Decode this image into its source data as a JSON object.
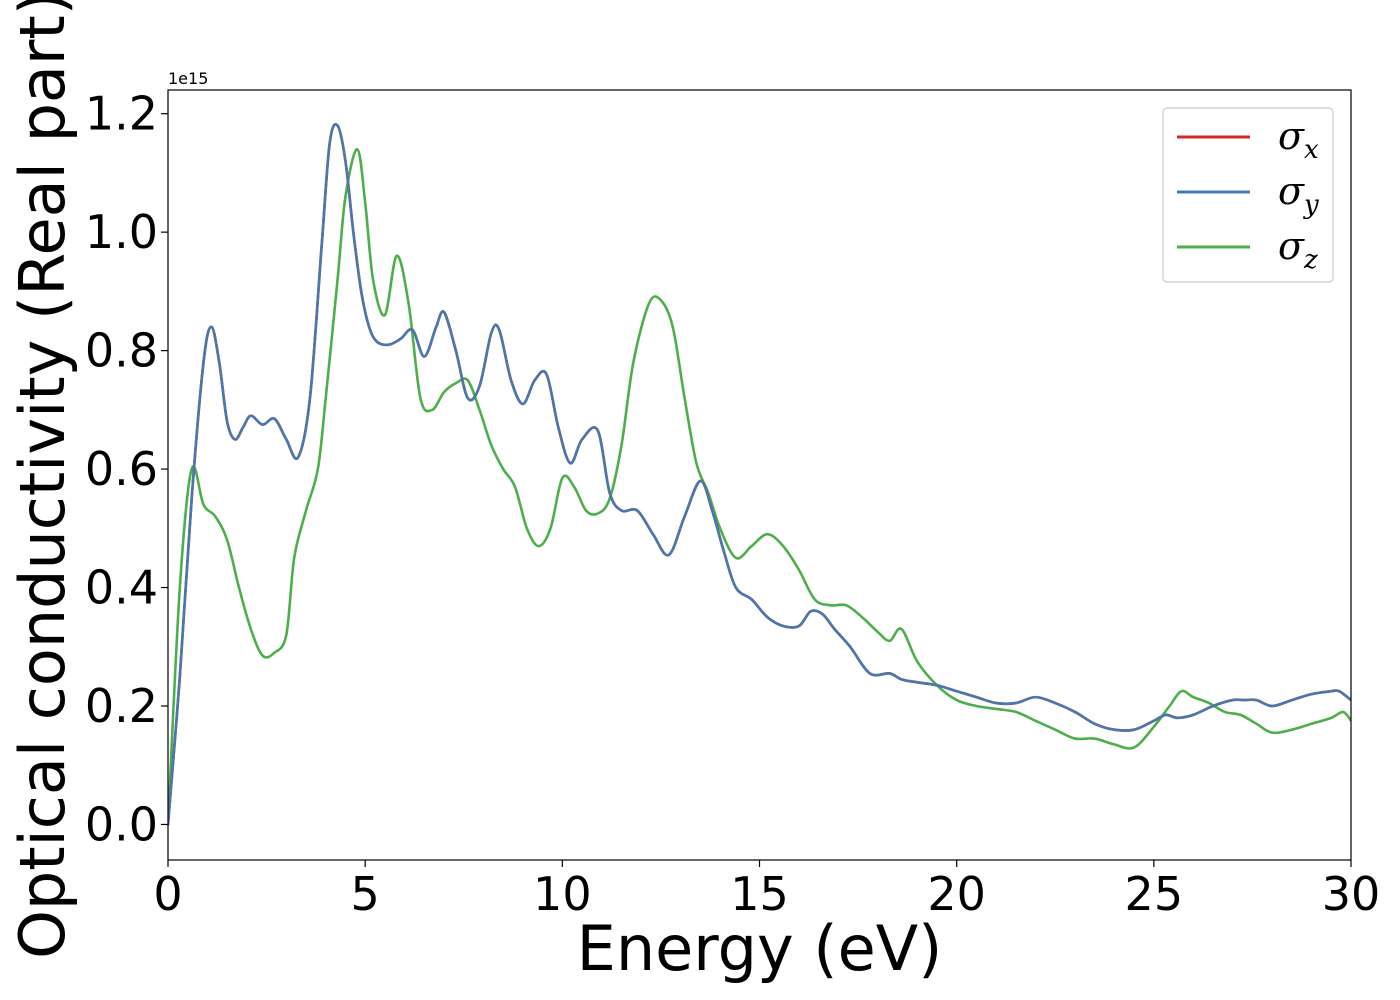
{
  "chart_data": {
    "type": "line",
    "xlabel": "Energy (eV)",
    "ylabel": "Optical conductivity (Real part)",
    "y_offset_label": "1e15",
    "xlim": [
      0,
      30
    ],
    "ylim": [
      -0.06,
      1.24
    ],
    "x_ticks": [
      0,
      5,
      10,
      15,
      20,
      25,
      30
    ],
    "x_tick_labels": [
      "0",
      "5",
      "10",
      "15",
      "20",
      "25",
      "30"
    ],
    "y_ticks": [
      0.0,
      0.2,
      0.4,
      0.6,
      0.8,
      1.0,
      1.2
    ],
    "y_tick_labels": [
      "0.0",
      "0.2",
      "0.4",
      "0.6",
      "0.8",
      "1.0",
      "1.2"
    ],
    "grid": false,
    "legend_position": "top-right",
    "series": [
      {
        "name": "σx",
        "base": "σ",
        "sub": "x",
        "color": "#d62728",
        "x": [
          0,
          0.3,
          0.6,
          0.9,
          1.1,
          1.3,
          1.5,
          1.7,
          1.9,
          2.1,
          2.4,
          2.7,
          3.0,
          3.3,
          3.6,
          3.9,
          4.1,
          4.3,
          4.5,
          4.7,
          4.9,
          5.1,
          5.3,
          5.6,
          5.9,
          6.2,
          6.5,
          6.8,
          7.0,
          7.3,
          7.6,
          7.9,
          8.2,
          8.4,
          8.7,
          9.0,
          9.3,
          9.6,
          9.9,
          10.2,
          10.5,
          10.9,
          11.2,
          11.5,
          11.9,
          12.3,
          12.7,
          13.1,
          13.5,
          13.8,
          14.1,
          14.4,
          14.8,
          15.2,
          15.6,
          16.0,
          16.3,
          16.6,
          16.9,
          17.3,
          17.8,
          18.3,
          18.6,
          19.0,
          19.5,
          20.0,
          20.5,
          21.0,
          21.5,
          22.0,
          22.5,
          23.0,
          23.5,
          24.0,
          24.5,
          25.0,
          25.3,
          25.6,
          26.0,
          26.5,
          27.0,
          27.3,
          27.6,
          28.0,
          28.5,
          29.0,
          29.5,
          29.7,
          30.0
        ],
        "y": [
          0.0,
          0.25,
          0.55,
          0.78,
          0.84,
          0.78,
          0.68,
          0.65,
          0.67,
          0.69,
          0.675,
          0.685,
          0.65,
          0.62,
          0.72,
          0.98,
          1.15,
          1.18,
          1.12,
          1.0,
          0.9,
          0.84,
          0.815,
          0.81,
          0.82,
          0.835,
          0.79,
          0.84,
          0.865,
          0.8,
          0.72,
          0.74,
          0.83,
          0.835,
          0.75,
          0.71,
          0.75,
          0.76,
          0.67,
          0.61,
          0.65,
          0.665,
          0.56,
          0.53,
          0.53,
          0.49,
          0.455,
          0.52,
          0.58,
          0.53,
          0.46,
          0.4,
          0.38,
          0.35,
          0.335,
          0.335,
          0.36,
          0.355,
          0.33,
          0.3,
          0.255,
          0.255,
          0.245,
          0.24,
          0.235,
          0.225,
          0.215,
          0.205,
          0.205,
          0.215,
          0.205,
          0.19,
          0.17,
          0.16,
          0.16,
          0.175,
          0.185,
          0.18,
          0.185,
          0.2,
          0.21,
          0.21,
          0.21,
          0.2,
          0.21,
          0.22,
          0.225,
          0.225,
          0.21
        ]
      },
      {
        "name": "σy",
        "base": "σ",
        "sub": "y",
        "color": "#4878ae",
        "x": [
          0,
          0.3,
          0.6,
          0.9,
          1.1,
          1.3,
          1.5,
          1.7,
          1.9,
          2.1,
          2.4,
          2.7,
          3.0,
          3.3,
          3.6,
          3.9,
          4.1,
          4.3,
          4.5,
          4.7,
          4.9,
          5.1,
          5.3,
          5.6,
          5.9,
          6.2,
          6.5,
          6.8,
          7.0,
          7.3,
          7.6,
          7.9,
          8.2,
          8.4,
          8.7,
          9.0,
          9.3,
          9.6,
          9.9,
          10.2,
          10.5,
          10.9,
          11.2,
          11.5,
          11.9,
          12.3,
          12.7,
          13.1,
          13.5,
          13.8,
          14.1,
          14.4,
          14.8,
          15.2,
          15.6,
          16.0,
          16.3,
          16.6,
          16.9,
          17.3,
          17.8,
          18.3,
          18.6,
          19.0,
          19.5,
          20.0,
          20.5,
          21.0,
          21.5,
          22.0,
          22.5,
          23.0,
          23.5,
          24.0,
          24.5,
          25.0,
          25.3,
          25.6,
          26.0,
          26.5,
          27.0,
          27.3,
          27.6,
          28.0,
          28.5,
          29.0,
          29.5,
          29.7,
          30.0
        ],
        "y": [
          0.0,
          0.25,
          0.55,
          0.78,
          0.84,
          0.78,
          0.68,
          0.65,
          0.67,
          0.69,
          0.675,
          0.685,
          0.65,
          0.62,
          0.72,
          0.98,
          1.15,
          1.18,
          1.12,
          1.0,
          0.9,
          0.84,
          0.815,
          0.81,
          0.82,
          0.835,
          0.79,
          0.84,
          0.865,
          0.8,
          0.72,
          0.74,
          0.83,
          0.835,
          0.75,
          0.71,
          0.75,
          0.76,
          0.67,
          0.61,
          0.65,
          0.665,
          0.56,
          0.53,
          0.53,
          0.49,
          0.455,
          0.52,
          0.58,
          0.53,
          0.46,
          0.4,
          0.38,
          0.35,
          0.335,
          0.335,
          0.36,
          0.355,
          0.33,
          0.3,
          0.255,
          0.255,
          0.245,
          0.24,
          0.235,
          0.225,
          0.215,
          0.205,
          0.205,
          0.215,
          0.205,
          0.19,
          0.17,
          0.16,
          0.16,
          0.175,
          0.185,
          0.18,
          0.185,
          0.2,
          0.21,
          0.21,
          0.21,
          0.2,
          0.21,
          0.22,
          0.225,
          0.225,
          0.21
        ]
      },
      {
        "name": "σz",
        "base": "σ",
        "sub": "z",
        "color": "#4daf4a",
        "x": [
          0,
          0.3,
          0.6,
          0.9,
          1.2,
          1.5,
          1.8,
          2.1,
          2.4,
          2.7,
          3.0,
          3.2,
          3.5,
          3.8,
          4.0,
          4.3,
          4.5,
          4.8,
          5.0,
          5.2,
          5.5,
          5.8,
          6.1,
          6.4,
          6.7,
          7.0,
          7.3,
          7.6,
          7.9,
          8.2,
          8.5,
          8.8,
          9.1,
          9.4,
          9.7,
          10.0,
          10.3,
          10.6,
          10.9,
          11.2,
          11.5,
          11.8,
          12.2,
          12.5,
          12.8,
          13.1,
          13.4,
          13.7,
          14.0,
          14.4,
          14.8,
          15.2,
          15.6,
          16.0,
          16.4,
          16.8,
          17.2,
          17.6,
          18.0,
          18.3,
          18.6,
          19.0,
          19.5,
          20.0,
          20.5,
          21.0,
          21.5,
          22.0,
          22.5,
          23.0,
          23.5,
          24.0,
          24.5,
          25.0,
          25.4,
          25.7,
          26.0,
          26.4,
          26.8,
          27.2,
          27.6,
          28.0,
          28.5,
          29.0,
          29.5,
          29.8,
          30.0
        ],
        "y": [
          0.0,
          0.4,
          0.6,
          0.54,
          0.52,
          0.48,
          0.4,
          0.33,
          0.285,
          0.29,
          0.32,
          0.45,
          0.53,
          0.6,
          0.72,
          0.92,
          1.06,
          1.14,
          1.05,
          0.92,
          0.86,
          0.96,
          0.88,
          0.72,
          0.7,
          0.73,
          0.745,
          0.75,
          0.7,
          0.64,
          0.6,
          0.57,
          0.5,
          0.47,
          0.5,
          0.585,
          0.57,
          0.53,
          0.525,
          0.55,
          0.64,
          0.78,
          0.88,
          0.885,
          0.84,
          0.72,
          0.61,
          0.56,
          0.5,
          0.45,
          0.47,
          0.49,
          0.47,
          0.43,
          0.38,
          0.37,
          0.37,
          0.35,
          0.325,
          0.31,
          0.33,
          0.275,
          0.235,
          0.21,
          0.2,
          0.195,
          0.19,
          0.175,
          0.16,
          0.145,
          0.145,
          0.135,
          0.13,
          0.165,
          0.2,
          0.225,
          0.215,
          0.205,
          0.19,
          0.185,
          0.17,
          0.155,
          0.16,
          0.17,
          0.18,
          0.19,
          0.175
        ]
      }
    ]
  }
}
